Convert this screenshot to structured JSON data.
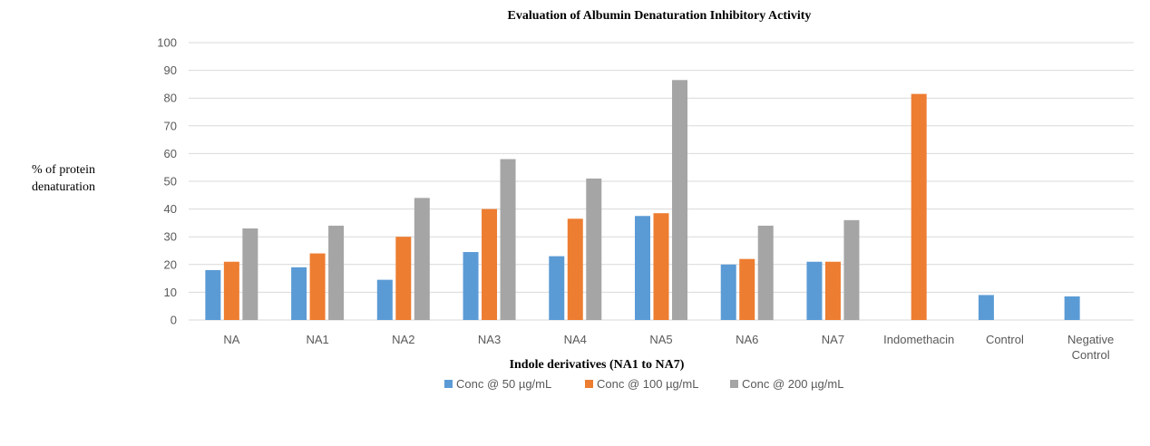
{
  "chart_data": {
    "type": "bar",
    "title": "Evaluation of Albumin Denaturation Inhibitory Activity",
    "xlabel": "Indole derivatives (NA1 to NA7)",
    "ylabel": [
      "% of protein",
      "denaturation"
    ],
    "ylim": [
      0,
      100
    ],
    "yticks": [
      0,
      10,
      20,
      30,
      40,
      50,
      60,
      70,
      80,
      90,
      100
    ],
    "grid": true,
    "legend_position": "bottom",
    "categories": [
      [
        "NA"
      ],
      [
        "NA1"
      ],
      [
        "NA2"
      ],
      [
        "NA3"
      ],
      [
        "NA4"
      ],
      [
        "NA5"
      ],
      [
        "NA6"
      ],
      [
        "NA7"
      ],
      [
        "Indomethacin"
      ],
      [
        "Control"
      ],
      [
        "Negative",
        "Control"
      ]
    ],
    "series": [
      {
        "name": "Conc @ 50 µg/mL",
        "color": "#5b9bd5",
        "values": [
          18,
          19,
          14.5,
          24.5,
          23,
          37.5,
          20,
          21,
          null,
          9,
          8.5
        ]
      },
      {
        "name": "Conc @ 100 µg/mL",
        "color": "#ed7d31",
        "values": [
          21,
          24,
          30,
          40,
          36.5,
          38.5,
          22,
          21,
          81.5,
          null,
          null
        ]
      },
      {
        "name": "Conc @ 200 µg/mL",
        "color": "#a5a5a5",
        "values": [
          33,
          34,
          44,
          58,
          51,
          86.5,
          34,
          36,
          null,
          null,
          null
        ]
      }
    ]
  }
}
